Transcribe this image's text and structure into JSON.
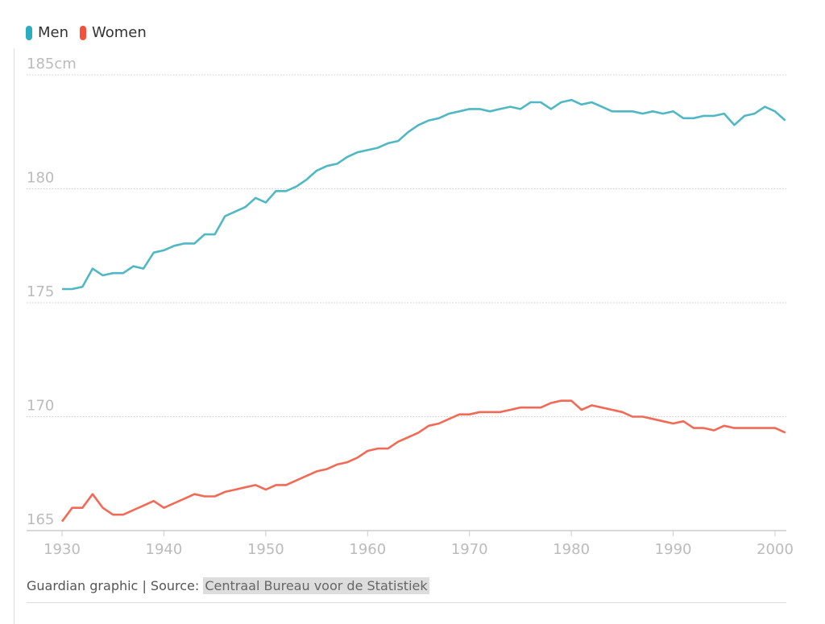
{
  "chart_data": {
    "type": "line",
    "title": "",
    "xlabel": "",
    "ylabel": "",
    "y_unit": "cm",
    "xlim": [
      1930,
      2001
    ],
    "ylim": [
      165,
      185
    ],
    "x_ticks": [
      "1930",
      "1940",
      "1950",
      "1960",
      "1970",
      "1980",
      "1990",
      "2000"
    ],
    "y_ticks": [
      "185cm",
      "180",
      "175",
      "170",
      "165"
    ],
    "y_tick_values": [
      185,
      180,
      175,
      170,
      165
    ],
    "x_tick_values": [
      1930,
      1940,
      1950,
      1960,
      1970,
      1980,
      1990,
      2000
    ],
    "legend_position": "top-left",
    "x": [
      1930,
      1931,
      1932,
      1933,
      1934,
      1935,
      1936,
      1937,
      1938,
      1939,
      1940,
      1941,
      1942,
      1943,
      1944,
      1945,
      1946,
      1947,
      1948,
      1949,
      1950,
      1951,
      1952,
      1953,
      1954,
      1955,
      1956,
      1957,
      1958,
      1959,
      1960,
      1961,
      1962,
      1963,
      1964,
      1965,
      1966,
      1967,
      1968,
      1969,
      1970,
      1971,
      1972,
      1973,
      1974,
      1975,
      1976,
      1977,
      1978,
      1979,
      1980,
      1981,
      1982,
      1983,
      1984,
      1985,
      1986,
      1987,
      1988,
      1989,
      1990,
      1991,
      1992,
      1993,
      1994,
      1995,
      1996,
      1997,
      1998,
      1999,
      2000,
      2001
    ],
    "series": [
      {
        "name": "Men",
        "color": "#4fb8c4",
        "values": [
          175.6,
          175.6,
          175.7,
          176.5,
          176.2,
          176.3,
          176.3,
          176.6,
          176.5,
          177.2,
          177.3,
          177.5,
          177.6,
          177.6,
          178.0,
          178.0,
          178.8,
          179.0,
          179.2,
          179.6,
          179.4,
          179.9,
          179.9,
          180.1,
          180.4,
          180.8,
          181.0,
          181.1,
          181.4,
          181.6,
          181.7,
          181.8,
          182.0,
          182.1,
          182.5,
          182.8,
          183.0,
          183.1,
          183.3,
          183.4,
          183.5,
          183.5,
          183.4,
          183.5,
          183.6,
          183.5,
          183.8,
          183.8,
          183.5,
          183.8,
          183.9,
          183.7,
          183.8,
          183.6,
          183.4,
          183.4,
          183.4,
          183.3,
          183.4,
          183.3,
          183.4,
          183.1,
          183.1,
          183.2,
          183.2,
          183.3,
          182.8,
          183.2,
          183.3,
          183.6,
          183.4,
          183.0
        ]
      },
      {
        "name": "Women",
        "color": "#f26a55",
        "values": [
          165.4,
          166.0,
          166.0,
          166.6,
          166.0,
          165.7,
          165.7,
          165.9,
          166.1,
          166.3,
          166.0,
          166.2,
          166.4,
          166.6,
          166.5,
          166.5,
          166.7,
          166.8,
          166.9,
          167.0,
          166.8,
          167.0,
          167.0,
          167.2,
          167.4,
          167.6,
          167.7,
          167.9,
          168.0,
          168.2,
          168.5,
          168.6,
          168.6,
          168.9,
          169.1,
          169.3,
          169.6,
          169.7,
          169.9,
          170.1,
          170.1,
          170.2,
          170.2,
          170.2,
          170.3,
          170.4,
          170.4,
          170.4,
          170.6,
          170.7,
          170.7,
          170.3,
          170.5,
          170.4,
          170.3,
          170.2,
          170.0,
          170.0,
          169.9,
          169.8,
          169.7,
          169.8,
          169.5,
          169.5,
          169.4,
          169.6,
          169.5,
          169.5,
          169.5,
          169.5,
          169.5,
          169.3
        ]
      }
    ]
  },
  "legend": {
    "men": "Men",
    "women": "Women",
    "men_color": "#2bacbf",
    "women_color": "#f5513a"
  },
  "footer": {
    "credit": "Guardian graphic | Source: ",
    "source": "Centraal Bureau voor de Statistiek"
  }
}
